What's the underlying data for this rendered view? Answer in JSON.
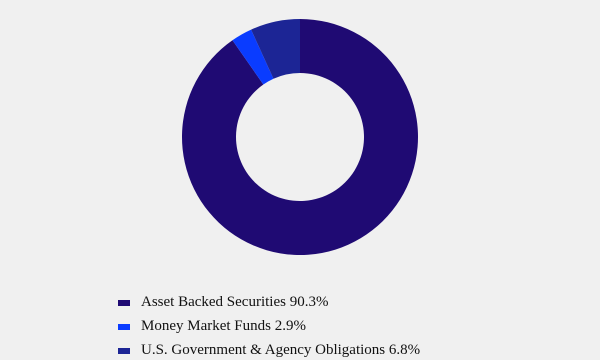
{
  "chart_data": {
    "type": "donut",
    "categories": [
      "Asset Backed Securities",
      "Money Market Funds",
      "U.S. Government & Agency Obligations"
    ],
    "values": [
      90.3,
      2.9,
      6.8
    ],
    "value_labels": [
      "90.3%",
      "2.9%",
      "6.8%"
    ],
    "colors": [
      "#1f0a73",
      "#0a3cff",
      "#1c2595"
    ],
    "legend": "bottom"
  }
}
